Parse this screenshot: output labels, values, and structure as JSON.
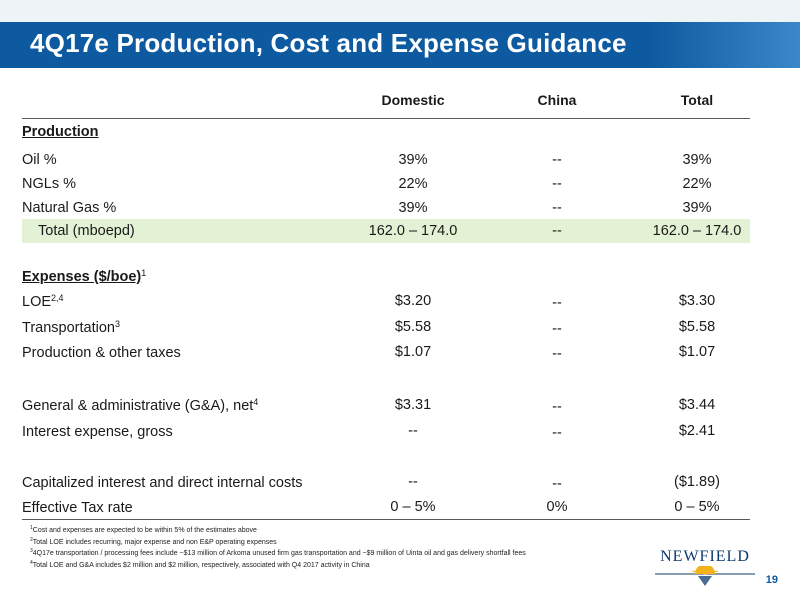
{
  "title": "4Q17e Production, Cost and Expense Guidance",
  "columns": [
    "Domestic",
    "China",
    "Total"
  ],
  "production_header": "Production",
  "production_rows": [
    {
      "label": "Oil %",
      "domestic": "39%",
      "china": "--",
      "total": "39%"
    },
    {
      "label": "NGLs %",
      "domestic": "22%",
      "china": "--",
      "total": "22%"
    },
    {
      "label": "Natural Gas %",
      "domestic": "39%",
      "china": "--",
      "total": "39%"
    }
  ],
  "total_row": {
    "label": "Total (mboepd)",
    "domestic": "162.0 – 174.0",
    "china": "--",
    "total": "162.0 – 174.0"
  },
  "expenses_header": "Expenses ($/boe)",
  "expenses_header_sup": "1",
  "expense_rows": [
    {
      "label": "LOE",
      "sup": "2,4",
      "domestic": "$3.20",
      "china": "--",
      "total": "$3.30"
    },
    {
      "label": "Transportation",
      "sup": "3",
      "domestic": "$5.58",
      "china": "--",
      "total": "$5.58"
    },
    {
      "label": "Production & other taxes",
      "sup": "",
      "domestic": "$1.07",
      "china": "--",
      "total": "$1.07"
    },
    {
      "label": "General & administrative (G&A), net",
      "sup": "4",
      "domestic": "$3.31",
      "china": "--",
      "total": "$3.44"
    },
    {
      "label": "Interest expense, gross",
      "sup": "",
      "domestic": "--",
      "china": "--",
      "total": "$2.41"
    },
    {
      "label": "Capitalized interest and direct internal costs",
      "sup": "",
      "domestic": "--",
      "china": "--",
      "total": "($1.89)"
    },
    {
      "label": "Effective Tax rate",
      "sup": "",
      "domestic": "0 – 5%",
      "china": "0%",
      "total": "0 – 5%"
    }
  ],
  "footnotes": [
    {
      "n": "1",
      "text": "Cost and expenses are expected to be within 5% of the estimates above"
    },
    {
      "n": "2",
      "text": "Total LOE includes recurring, major expense and non E&P operating expenses"
    },
    {
      "n": "3",
      "text": "4Q17e transportation / processing fees include ~$13 million of Arkoma unused firm gas transportation and ~$9 million of Uinta oil and gas delivery shortfall fees"
    },
    {
      "n": "4",
      "text": "Total LOE and G&A includes $2 million and $2 million, respectively, associated with Q4 2017 activity in China"
    }
  ],
  "logo_text": "NEWFIELD",
  "page_number": "19",
  "colors": {
    "banner": "#0d5aa0",
    "highlight": "#e3f2d4"
  }
}
